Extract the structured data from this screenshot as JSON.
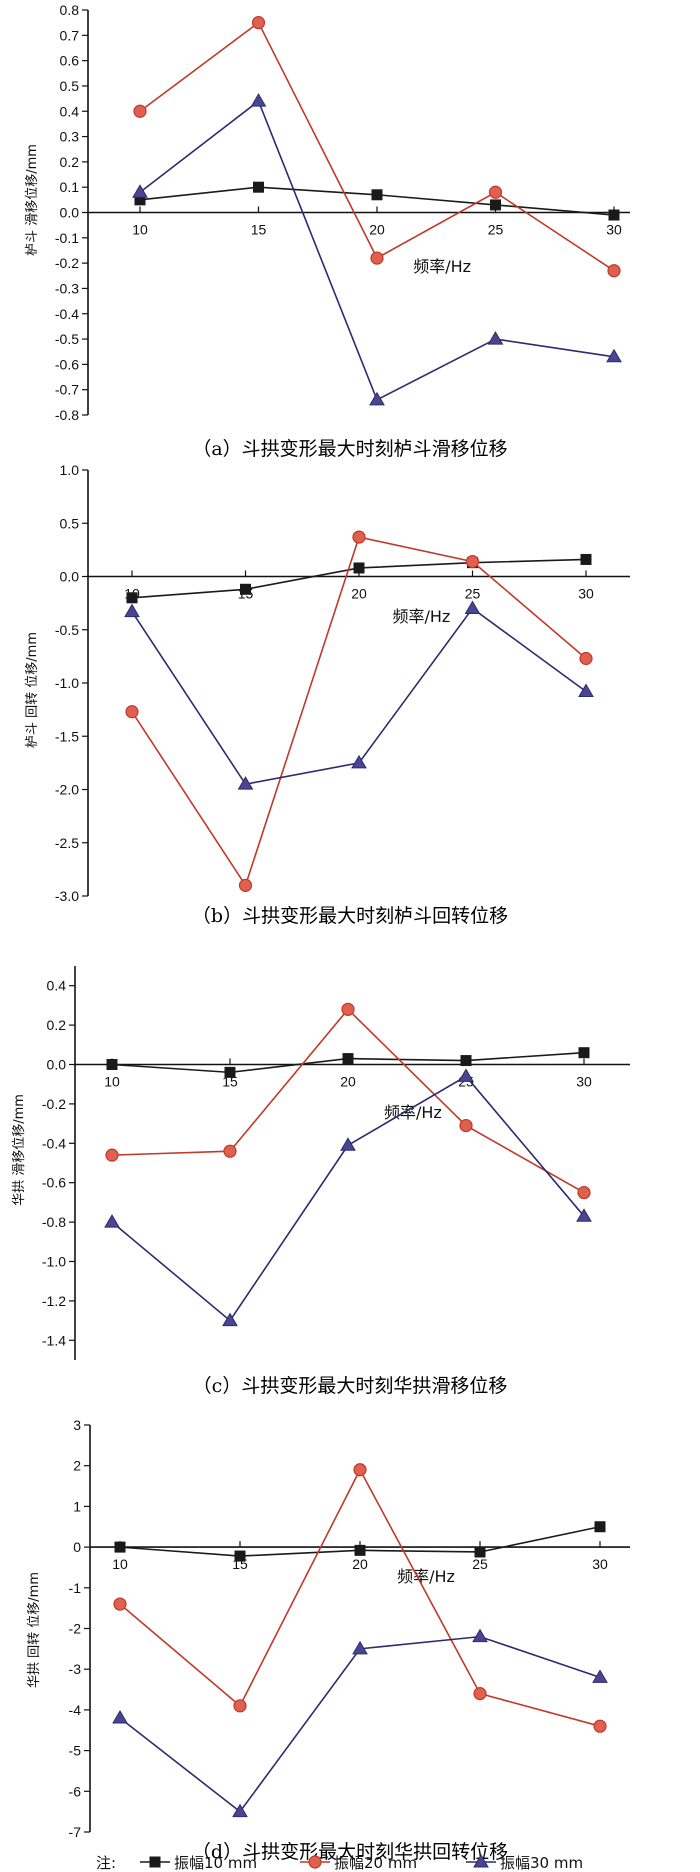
{
  "chart_data": [
    {
      "type": "line",
      "caption": "（a）斗拱变形最大时刻栌斗滑移位移",
      "xlabel": "频率/Hz",
      "ylabel": "栌斗  滑移位移/mm",
      "x": [
        10,
        15,
        20,
        25,
        30
      ],
      "xticks": [
        "10",
        "15",
        "20",
        "25",
        "30"
      ],
      "ylim": [
        -0.8,
        0.8
      ],
      "yticks": [
        "0.8",
        "0.7",
        "0.6",
        "0.5",
        "0.4",
        "0.3",
        "0.2",
        "0.1",
        "0.0",
        "-0.1",
        "-0.2",
        "-0.3",
        "-0.4",
        "-0.5",
        "-0.6",
        "-0.7",
        "-0.8"
      ],
      "series": [
        {
          "name": "振幅10 mm",
          "values": [
            0.05,
            0.1,
            0.07,
            0.03,
            -0.01
          ]
        },
        {
          "name": "振幅20 mm",
          "values": [
            0.4,
            0.75,
            -0.18,
            0.08,
            -0.23
          ]
        },
        {
          "name": "振幅30 mm",
          "values": [
            0.08,
            0.44,
            -0.74,
            -0.5,
            -0.57
          ]
        }
      ]
    },
    {
      "type": "line",
      "caption": "（b）斗拱变形最大时刻栌斗回转位移",
      "xlabel": "频率/Hz",
      "ylabel": "栌斗  回转  位移/mm",
      "x": [
        10,
        15,
        20,
        25,
        30
      ],
      "xticks": [
        "10",
        "15",
        "20",
        "25",
        "30"
      ],
      "ylim": [
        -3.0,
        1.0
      ],
      "yticks": [
        "1.0",
        "0.5",
        "0.0",
        "-0.5",
        "-1.0",
        "-1.5",
        "-2.0",
        "-2.5",
        "-3.0"
      ],
      "series": [
        {
          "name": "振幅10 mm",
          "values": [
            -0.2,
            -0.12,
            0.08,
            0.13,
            0.16
          ]
        },
        {
          "name": "振幅20 mm",
          "values": [
            -1.27,
            -2.9,
            0.37,
            0.14,
            -0.77
          ]
        },
        {
          "name": "振幅30 mm",
          "values": [
            -0.33,
            -1.95,
            -1.75,
            -0.3,
            -1.08
          ]
        }
      ]
    },
    {
      "type": "line",
      "caption": "（c）斗拱变形最大时刻华拱滑移位移",
      "xlabel": "频率/Hz",
      "ylabel": "华拱  滑移位移/mm",
      "x": [
        10,
        15,
        20,
        25,
        30
      ],
      "xticks": [
        "10",
        "15",
        "20",
        "25",
        "30"
      ],
      "ylim": [
        -1.5,
        0.5
      ],
      "yticks": [
        "0.4",
        "0.2",
        "0.0",
        "-0.2",
        "-0.4",
        "-0.6",
        "-0.8",
        "-1.0",
        "-1.2",
        "-1.4"
      ],
      "series": [
        {
          "name": "振幅10 mm",
          "values": [
            0.0,
            -0.04,
            0.03,
            0.02,
            0.06
          ]
        },
        {
          "name": "振幅20 mm",
          "values": [
            -0.46,
            -0.44,
            0.28,
            -0.31,
            -0.65
          ]
        },
        {
          "name": "振幅30 mm",
          "values": [
            -0.8,
            -1.3,
            -0.41,
            -0.06,
            -0.77
          ]
        }
      ]
    },
    {
      "type": "line",
      "caption": "（d）斗拱变形最大时刻华拱回转位移",
      "xlabel": "频率/Hz",
      "ylabel": "华拱  回转  位移/mm",
      "x": [
        10,
        15,
        20,
        25,
        30
      ],
      "xticks": [
        "10",
        "15",
        "20",
        "25",
        "30"
      ],
      "ylim": [
        -7,
        3
      ],
      "yticks": [
        "3",
        "2",
        "1",
        "0",
        "-1",
        "-2",
        "-3",
        "-4",
        "-5",
        "-6",
        "-7"
      ],
      "series": [
        {
          "name": "振幅10 mm",
          "values": [
            0.0,
            -0.22,
            -0.08,
            -0.12,
            0.5
          ]
        },
        {
          "name": "振幅20 mm",
          "values": [
            -1.4,
            -3.9,
            1.9,
            -3.6,
            -4.4
          ]
        },
        {
          "name": "振幅30 mm",
          "values": [
            -4.2,
            -6.5,
            -2.5,
            -2.2,
            -3.2
          ]
        }
      ]
    }
  ],
  "legend": {
    "prefix": "注:",
    "items": [
      "振幅10 mm",
      "振幅20 mm",
      "振幅30 mm"
    ]
  },
  "colors": {
    "series": [
      "#1a1a1a",
      "#c0392b",
      "#2e2a6e"
    ],
    "marker_fill": [
      "#1a1a1a",
      "#e06050",
      "#4a4590"
    ]
  }
}
